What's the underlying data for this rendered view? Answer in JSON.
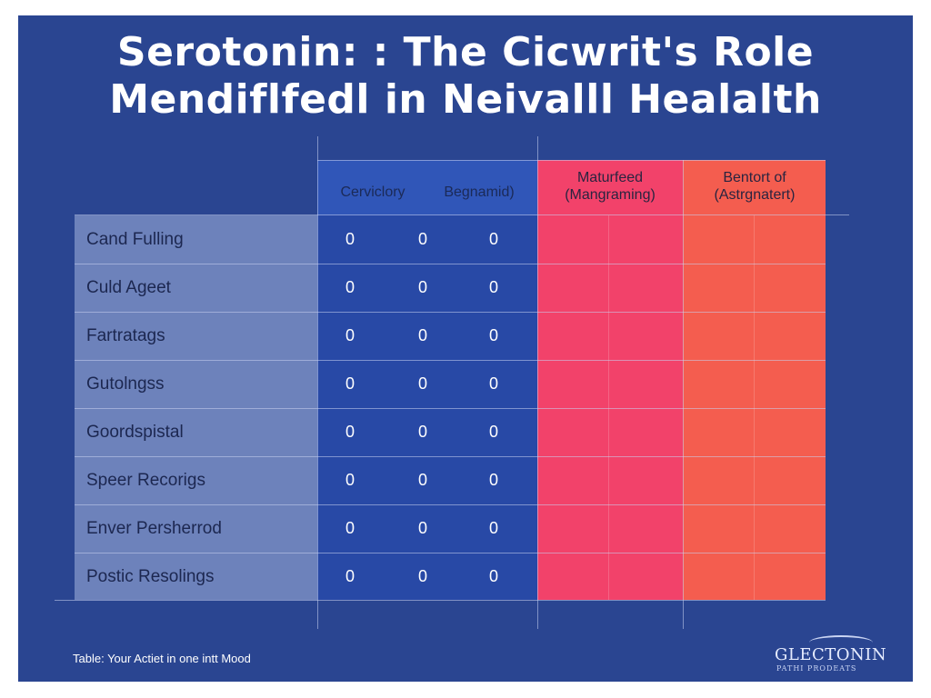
{
  "title_line1": "Serotonin: : The Cicwrit's Role",
  "title_line2": "Mendiflfedl in Neivalll Healalth",
  "chart_data": {
    "type": "table",
    "columns": [
      "Cerviclory",
      "Begnamid)",
      "Maturfeed (Mangraming)",
      "Bentort of (Astrgnatert)"
    ],
    "rows": [
      {
        "label": "Cand Fulling",
        "values": [
          "0",
          "0",
          "0"
        ]
      },
      {
        "label": "Culd Ageet",
        "values": [
          "0",
          "0",
          "0"
        ]
      },
      {
        "label": "Fartratags",
        "values": [
          "0",
          "0",
          "0"
        ]
      },
      {
        "label": "Gutolngss",
        "values": [
          "0",
          "0",
          "0"
        ]
      },
      {
        "label": "Goordspistal",
        "values": [
          "0",
          "0",
          "0"
        ]
      },
      {
        "label": "Speer Recorigs",
        "values": [
          "0",
          "0",
          "0"
        ]
      },
      {
        "label": "Enver Persherrod",
        "values": [
          "0",
          "0",
          "0"
        ]
      },
      {
        "label": "Postic Resolings",
        "values": [
          "0",
          "0",
          "0"
        ]
      }
    ]
  },
  "caption": "Table: Your Actiet in one intt Mood",
  "logo": {
    "name": "GLECTONIN",
    "tagline": "PATHI PRODEATS"
  },
  "colors": {
    "background": "#2a4591",
    "pink": "#f2426a",
    "orange": "#f45d4f",
    "label_column": "#6d82bb"
  }
}
